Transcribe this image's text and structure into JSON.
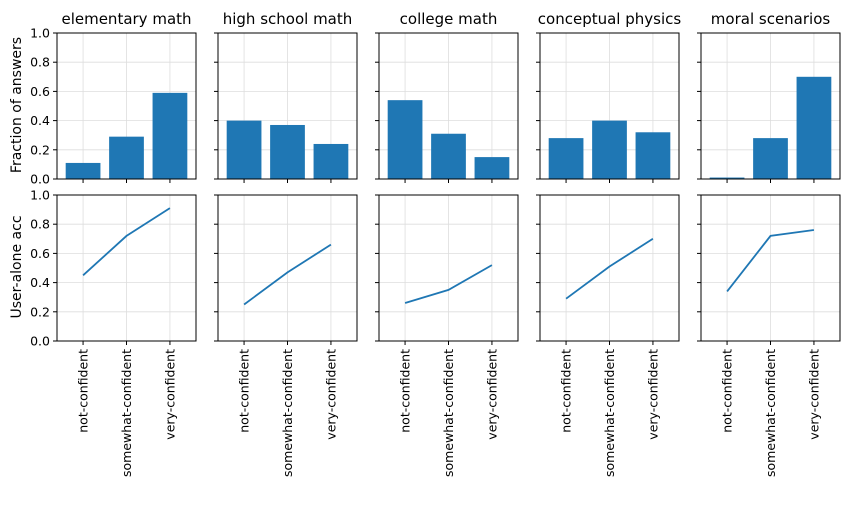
{
  "chart_data": {
    "type": "bar+line",
    "categories": [
      "not-confident",
      "somewhat-confident",
      "very-confident"
    ],
    "row_labels": {
      "top": "Fraction of answers",
      "bottom": "User-alone acc"
    },
    "ylim": [
      0,
      1
    ],
    "yticks": [
      "0.0",
      "0.2",
      "0.4",
      "0.6",
      "0.8",
      "1.0"
    ],
    "grid": true,
    "colors": {
      "series": "#1f77b4",
      "grid": "#dddddd",
      "axis": "#000000"
    },
    "panels": [
      {
        "title": "elementary math",
        "bar_values": [
          0.11,
          0.29,
          0.59
        ],
        "line_values": [
          0.45,
          0.72,
          0.91
        ]
      },
      {
        "title": "high school math",
        "bar_values": [
          0.4,
          0.37,
          0.24
        ],
        "line_values": [
          0.25,
          0.47,
          0.66
        ]
      },
      {
        "title": "college math",
        "bar_values": [
          0.54,
          0.31,
          0.15
        ],
        "line_values": [
          0.26,
          0.35,
          0.52
        ]
      },
      {
        "title": "conceptual physics",
        "bar_values": [
          0.28,
          0.4,
          0.32
        ],
        "line_values": [
          0.29,
          0.51,
          0.7
        ]
      },
      {
        "title": "moral scenarios",
        "bar_values": [
          0.01,
          0.28,
          0.7
        ],
        "line_values": [
          0.34,
          0.72,
          0.76
        ]
      }
    ]
  }
}
